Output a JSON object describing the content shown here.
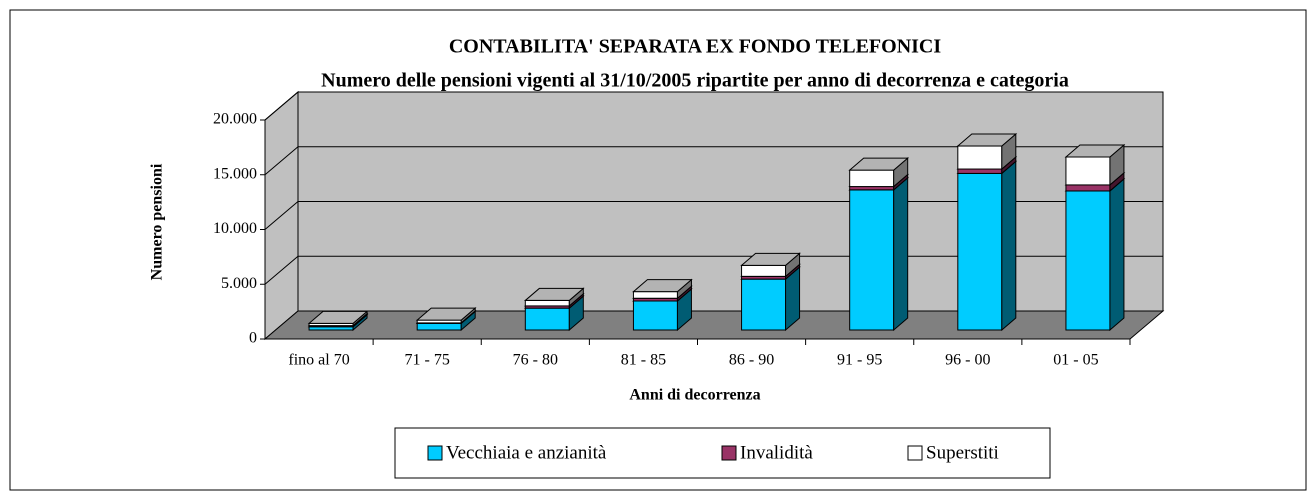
{
  "chart_data": {
    "type": "bar3d_stacked",
    "title": "CONTABILITA' SEPARATA EX FONDO TELEFONICI",
    "subtitle": "Numero delle pensioni vigenti al 31/10/2005 ripartite per anno di decorrenza e categoria",
    "x_label": "Anni di decorrenza",
    "y_label": "Numero pensioni",
    "categories": [
      "fino al 70",
      "71 - 75",
      "76 - 80",
      "81 - 85",
      "86 - 90",
      "91 - 95",
      "96 - 00",
      "01 - 05"
    ],
    "series": [
      {
        "name": "Vecchiaia e anzianità",
        "color": "#00ccff",
        "values": [
          300,
          600,
          2000,
          2650,
          4650,
          12800,
          14300,
          12700
        ]
      },
      {
        "name": "Invalidità",
        "color": "#993366",
        "values": [
          100,
          50,
          200,
          250,
          250,
          300,
          400,
          550
        ]
      },
      {
        "name": "Superstiti",
        "color": "#ffffff",
        "values": [
          200,
          250,
          500,
          600,
          1000,
          1500,
          2100,
          2550
        ]
      }
    ],
    "ylim": [
      0,
      20000
    ],
    "yticks": [
      0,
      {
        "value": 5000,
        "label": "5.000"
      },
      {
        "value": 10000,
        "label": "10.000"
      },
      {
        "value": 15000,
        "label": "15.000"
      },
      {
        "value": 20000,
        "label": "20.000"
      }
    ],
    "grid": true,
    "legend": "bottom"
  }
}
